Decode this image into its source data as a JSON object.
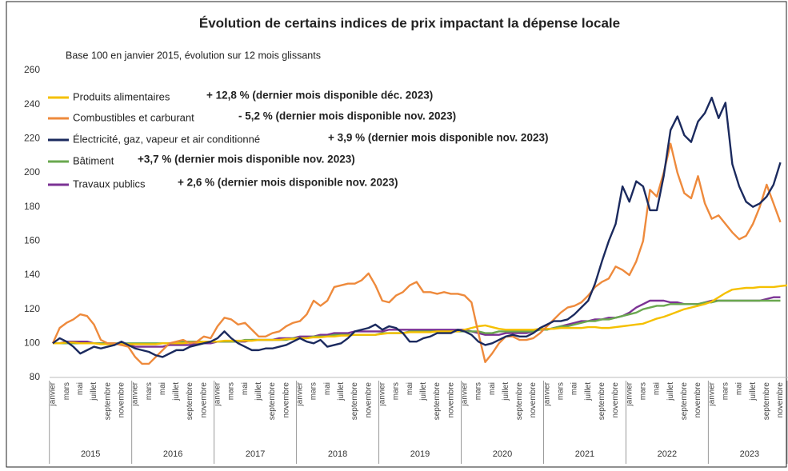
{
  "chart_data": {
    "type": "line",
    "title": "Évolution de certains indices de prix impactant la dépense locale",
    "subtitle": "Base 100 en janvier 2015, évolution sur 12 mois glissants",
    "categories": [
      "janvier",
      null,
      "mars",
      null,
      "mai",
      null,
      "juillet",
      null,
      "septembre",
      null,
      "novembre",
      null,
      "janvier",
      null,
      "mars",
      null,
      "mai",
      null,
      "juillet",
      null,
      "septembre",
      null,
      "novembre",
      null,
      "janvier",
      null,
      "mars",
      null,
      "mai",
      null,
      "juillet",
      null,
      "septembre",
      null,
      "novembre",
      null,
      "janvier",
      null,
      "mars",
      null,
      "mai",
      null,
      "juillet",
      null,
      "septembre",
      null,
      "novembre",
      null,
      "janvier",
      null,
      "mars",
      null,
      "mai",
      null,
      "juillet",
      null,
      "septembre",
      null,
      "novembre",
      null,
      "janvier",
      null,
      "mars",
      null,
      "mai",
      null,
      "juillet",
      null,
      "septembre",
      null,
      "novembre",
      null,
      "janvier",
      null,
      "mars",
      null,
      "mai",
      null,
      "juillet",
      null,
      "septembre",
      null,
      "novembre",
      null,
      "janvier",
      null,
      "mars",
      null,
      "mai",
      null,
      "juillet",
      null,
      "septembre",
      null,
      "novembre",
      null,
      "janvier",
      null,
      "mars",
      null,
      "mai",
      null,
      "juillet",
      null,
      "septembre",
      null,
      "novembre",
      null
    ],
    "years": [
      "2015",
      "2016",
      "2017",
      "2018",
      "2019",
      "2020",
      "2021",
      "2022",
      "2023"
    ],
    "ylim": [
      80,
      260
    ],
    "yticks": [
      80,
      100,
      120,
      140,
      160,
      180,
      200,
      220,
      240,
      260
    ],
    "grid": false,
    "series": [
      {
        "name": "Produits alimentaires",
        "color": "#f5c000",
        "annotation": "+ 12,8 % (dernier mois disponible déc. 2023)",
        "values": [
          100,
          100,
          100.5,
          100.5,
          100,
          100,
          100,
          99.5,
          99.5,
          99.5,
          99.5,
          99.5,
          99.5,
          99.5,
          99.5,
          99.5,
          100,
          100,
          100,
          100,
          100.5,
          100.5,
          101,
          101,
          101,
          101.5,
          101.5,
          101.5,
          101.5,
          101.5,
          102,
          102,
          102,
          102,
          102.5,
          102.5,
          103,
          103,
          103.5,
          103.5,
          104,
          104,
          104.5,
          104.5,
          105,
          105,
          105,
          105,
          105.5,
          106,
          106,
          106,
          106.5,
          106.5,
          106.5,
          106.5,
          107,
          107,
          107,
          107,
          108,
          109,
          110,
          110.5,
          109.5,
          108.5,
          108,
          108,
          108,
          108,
          108,
          108.5,
          108.5,
          108.5,
          109,
          109,
          109,
          109,
          109.5,
          109.5,
          109,
          109,
          109.5,
          110,
          110.5,
          111,
          111.5,
          113,
          114.5,
          115.5,
          117,
          118.5,
          120,
          121,
          122,
          123,
          124.5,
          127,
          129.5,
          131.5,
          132,
          132.5,
          132.5,
          133,
          133,
          133,
          133.5,
          134
        ]
      },
      {
        "name": "Combustibles et carburant",
        "color": "#ee8a3c",
        "annotation": "- 5,2 % (dernier mois disponible nov. 2023)",
        "values": [
          100,
          109,
          112,
          114,
          117,
          116,
          111,
          102,
          100,
          100,
          99,
          98,
          92,
          88,
          88,
          92,
          96,
          100,
          101,
          102,
          100,
          101,
          104,
          103,
          110,
          115,
          114,
          111,
          112,
          108,
          104,
          104,
          106,
          107,
          110,
          112,
          113,
          117,
          125,
          122,
          125,
          133,
          134,
          135,
          135,
          137,
          141,
          134,
          125,
          124,
          128,
          130,
          134,
          136,
          130,
          130,
          129,
          130,
          129,
          129,
          128,
          124,
          106,
          89,
          94,
          100,
          104,
          104,
          102,
          102,
          103,
          106,
          110,
          114,
          118,
          121,
          122,
          124,
          128,
          133,
          136,
          138,
          145,
          143,
          140,
          148,
          160,
          190,
          186,
          200,
          217,
          200,
          188,
          185,
          198,
          182,
          173,
          175,
          170,
          165,
          161,
          163,
          170,
          180,
          193,
          182,
          171,
          null
        ]
      },
      {
        "name": "Électricité, gaz, vapeur et air conditionné",
        "color": "#1b2a5e",
        "annotation": "+ 3,9 % (dernier mois disponible nov. 2023)",
        "values": [
          100,
          103,
          101,
          98,
          94,
          96,
          98,
          97,
          98,
          99,
          101,
          99,
          97,
          96,
          95,
          93,
          92,
          94,
          96,
          96,
          98,
          99,
          100,
          101,
          103,
          107,
          103,
          100,
          98,
          96,
          96,
          97,
          97,
          98,
          99,
          101,
          103,
          101,
          100,
          102,
          98,
          99,
          100,
          103,
          107,
          108,
          109,
          111,
          108,
          110,
          109,
          106,
          101,
          101,
          103,
          104,
          106,
          106,
          106,
          108,
          107,
          105,
          101,
          99,
          100,
          102,
          104,
          105,
          104,
          104,
          106,
          109,
          111,
          113,
          113,
          114,
          117,
          121,
          125,
          135,
          148,
          160,
          170,
          192,
          183,
          195,
          192,
          178,
          178,
          198,
          225,
          233,
          222,
          218,
          230,
          235,
          244,
          232,
          241,
          205,
          192,
          183,
          180,
          182,
          186,
          193,
          206,
          null
        ]
      },
      {
        "name": "Bâtiment",
        "color": "#6aa84f",
        "annotation": "+3,7 % (dernier mois disponible nov. 2023)",
        "values": [
          100,
          100,
          100,
          100,
          100,
          100,
          100,
          100,
          100,
          100,
          100,
          100,
          100,
          100,
          100,
          100,
          100,
          100,
          100,
          101,
          101,
          101,
          101,
          101,
          101,
          101,
          101,
          101,
          102,
          102,
          102,
          102,
          102,
          102,
          102,
          103,
          103,
          103,
          104,
          104,
          104,
          105,
          105,
          105,
          105,
          105,
          105,
          105,
          106,
          106,
          106,
          106,
          107,
          107,
          107,
          107,
          107,
          107,
          107,
          107,
          107,
          107,
          107,
          106,
          106,
          107,
          107,
          107,
          107,
          107,
          107,
          108,
          108,
          109,
          110,
          110,
          111,
          112,
          113,
          113,
          114,
          114,
          115,
          116,
          117,
          118,
          120,
          121,
          122,
          122,
          123,
          123,
          123,
          123,
          123,
          124,
          124,
          125,
          125,
          125,
          125,
          125,
          125,
          125,
          125,
          125,
          125,
          null
        ]
      },
      {
        "name": "Travaux publics",
        "color": "#7b3294",
        "annotation": "+ 2,6 % (dernier mois disponible nov. 2023)",
        "values": [
          100,
          100,
          101,
          101,
          101,
          101,
          100,
          100,
          100,
          100,
          99,
          99,
          98,
          98,
          98,
          98,
          98,
          99,
          99,
          99,
          99,
          100,
          100,
          100,
          101,
          101,
          101,
          101,
          101,
          102,
          102,
          102,
          102,
          103,
          103,
          103,
          104,
          104,
          104,
          105,
          105,
          106,
          106,
          106,
          107,
          107,
          107,
          107,
          107,
          108,
          108,
          108,
          108,
          108,
          108,
          108,
          108,
          108,
          108,
          108,
          108,
          107,
          106,
          105,
          105,
          105,
          106,
          106,
          106,
          106,
          107,
          108,
          108,
          109,
          110,
          111,
          112,
          113,
          113,
          114,
          114,
          115,
          115,
          116,
          118,
          121,
          123,
          125,
          125,
          125,
          124,
          124,
          123,
          123,
          123,
          124,
          125,
          125,
          125,
          125,
          125,
          125,
          125,
          125,
          126,
          127,
          127,
          null
        ]
      }
    ]
  }
}
